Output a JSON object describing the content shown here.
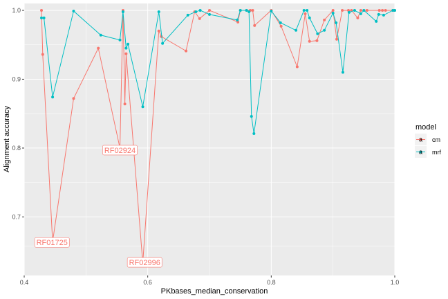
{
  "chart_data": {
    "type": "line",
    "title": "",
    "xlabel": "PKbases_median_conservation",
    "ylabel": "Alignment accuracy",
    "xlim": [
      0.4,
      1.0
    ],
    "ylim": [
      0.615,
      1.01
    ],
    "xticks": [
      0.4,
      0.6,
      0.8,
      1.0
    ],
    "xtick_labels": [
      "0.4",
      "0.6",
      "0.8",
      "1.0"
    ],
    "yticks": [
      0.7,
      0.8,
      0.9,
      1.0
    ],
    "ytick_labels": [
      "0.7",
      "0.8",
      "0.9",
      "1.0"
    ],
    "grid": true,
    "legend": {
      "title": "model",
      "position": "right"
    },
    "series": [
      {
        "name": "cm",
        "color": "#F8766D",
        "points": [
          [
            0.428,
            1.0
          ],
          [
            0.43,
            0.936
          ],
          [
            0.446,
            0.664
          ],
          [
            0.48,
            0.872
          ],
          [
            0.52,
            0.945
          ],
          [
            0.555,
            0.8
          ],
          [
            0.56,
            1.0
          ],
          [
            0.563,
            0.864
          ],
          [
            0.565,
            0.937
          ],
          [
            0.592,
            0.633
          ],
          [
            0.618,
            0.97
          ],
          [
            0.622,
            0.962
          ],
          [
            0.662,
            0.941
          ],
          [
            0.676,
            0.998
          ],
          [
            0.684,
            0.988
          ],
          [
            0.7,
            1.0
          ],
          [
            0.746,
            0.983
          ],
          [
            0.75,
            1.0
          ],
          [
            0.76,
            1.0
          ],
          [
            0.766,
            1.0
          ],
          [
            0.77,
            1.0
          ],
          [
            0.773,
            0.978
          ],
          [
            0.8,
            1.0
          ],
          [
            0.816,
            0.977
          ],
          [
            0.842,
            0.918
          ],
          [
            0.855,
            0.995
          ],
          [
            0.862,
            0.955
          ],
          [
            0.874,
            0.956
          ],
          [
            0.886,
            0.986
          ],
          [
            0.9,
            1.0
          ],
          [
            0.906,
            0.958
          ],
          [
            0.915,
            1.0
          ],
          [
            0.925,
            1.0
          ],
          [
            0.93,
            1.0
          ],
          [
            0.94,
            0.989
          ],
          [
            0.945,
            1.0
          ],
          [
            0.955,
            1.0
          ],
          [
            0.975,
            1.0
          ],
          [
            0.98,
            1.0
          ],
          [
            0.985,
            1.0
          ],
          [
            0.997,
            1.0
          ],
          [
            1.0,
            1.0
          ]
        ]
      },
      {
        "name": "mrf",
        "color": "#00BFC4",
        "points": [
          [
            0.428,
            0.989
          ],
          [
            0.432,
            0.989
          ],
          [
            0.446,
            0.874
          ],
          [
            0.48,
            0.999
          ],
          [
            0.524,
            0.964
          ],
          [
            0.555,
            0.957
          ],
          [
            0.56,
            0.998
          ],
          [
            0.565,
            0.945
          ],
          [
            0.568,
            0.951
          ],
          [
            0.592,
            0.86
          ],
          [
            0.618,
            0.998
          ],
          [
            0.624,
            0.952
          ],
          [
            0.665,
            0.993
          ],
          [
            0.678,
            0.998
          ],
          [
            0.685,
            1.0
          ],
          [
            0.7,
            0.994
          ],
          [
            0.745,
            0.986
          ],
          [
            0.75,
            1.0
          ],
          [
            0.76,
            1.0
          ],
          [
            0.764,
            0.998
          ],
          [
            0.768,
            0.846
          ],
          [
            0.772,
            0.821
          ],
          [
            0.8,
            0.999
          ],
          [
            0.815,
            0.982
          ],
          [
            0.84,
            0.971
          ],
          [
            0.853,
            1.0
          ],
          [
            0.858,
            1.0
          ],
          [
            0.862,
            0.989
          ],
          [
            0.875,
            0.966
          ],
          [
            0.886,
            0.971
          ],
          [
            0.9,
            0.996
          ],
          [
            0.905,
            0.982
          ],
          [
            0.916,
            0.91
          ],
          [
            0.926,
            0.997
          ],
          [
            0.935,
            1.0
          ],
          [
            0.945,
            0.995
          ],
          [
            0.95,
            1.0
          ],
          [
            0.97,
            0.984
          ],
          [
            0.974,
            0.994
          ],
          [
            0.982,
            0.993
          ],
          [
            0.997,
            1.0
          ],
          [
            1.0,
            1.0
          ]
        ]
      }
    ],
    "annotations": [
      {
        "text": "RF02924",
        "x": 0.555,
        "y": 0.797,
        "series": "cm"
      },
      {
        "text": "RF01725",
        "x": 0.445,
        "y": 0.663,
        "series": "cm"
      },
      {
        "text": "RF02996",
        "x": 0.595,
        "y": 0.634,
        "series": "cm"
      }
    ]
  }
}
